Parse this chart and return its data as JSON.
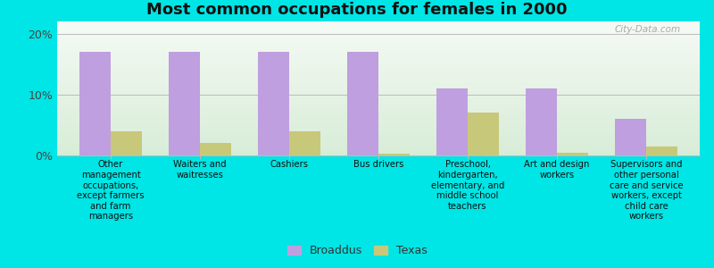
{
  "title": "Most common occupations for females in 2000",
  "categories": [
    "Other\nmanagement\noccupations,\nexcept farmers\nand farm\nmanagers",
    "Waiters and\nwaitresses",
    "Cashiers",
    "Bus drivers",
    "Preschool,\nkindergarten,\nelementary, and\nmiddle school\nteachers",
    "Art and design\nworkers",
    "Supervisors and\nother personal\ncare and service\nworkers, except\nchild care\nworkers"
  ],
  "broaddus_values": [
    17.0,
    17.0,
    17.0,
    17.0,
    11.0,
    11.0,
    6.0
  ],
  "texas_values": [
    4.0,
    2.0,
    4.0,
    0.3,
    7.0,
    0.5,
    1.5
  ],
  "broaddus_color": "#bf9fdf",
  "texas_color": "#c8c87a",
  "bg_bottom_color": "#d8edd8",
  "bg_top_color": "#f5faf5",
  "outer_background": "#00e5e5",
  "ylim": [
    0,
    22
  ],
  "yticks": [
    0,
    10,
    20
  ],
  "ytick_labels": [
    "0%",
    "10%",
    "20%"
  ],
  "bar_width": 0.35,
  "legend_labels": [
    "Broaddus",
    "Texas"
  ],
  "watermark": "City-Data.com"
}
